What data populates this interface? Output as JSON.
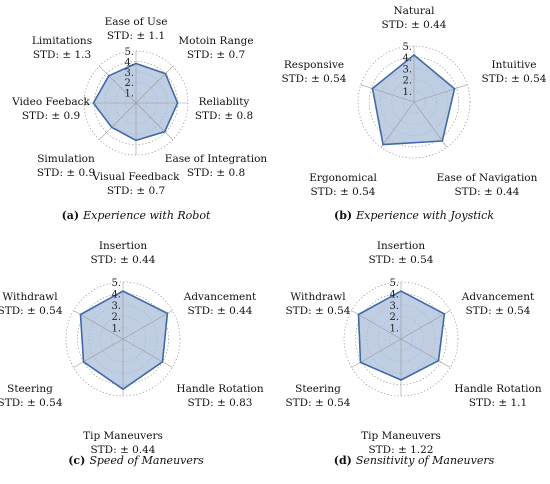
{
  "chart_data": [
    {
      "type": "radar",
      "panel": "a",
      "caption_letter": "(a)",
      "caption_title": "Experience with Robot",
      "rlim": [
        0,
        5
      ],
      "ticks": [
        "1.",
        "2.",
        "3.",
        "4.",
        "5."
      ],
      "grid": true,
      "categories": [
        "Ease of Use",
        "Motoin Range",
        "Reliablity",
        "Ease of Integration",
        "Visual Feedback",
        "Simulation",
        "Video Feeback",
        "Limitations"
      ],
      "std_labels": [
        "STD: ± 1.1",
        "STD: ± 0.7",
        "STD: ± 0.8",
        "STD: ± 0.8",
        "STD: ± 0.7",
        "STD: ± 0.9",
        "STD: ± 0.9",
        "STD: ± 1.3"
      ],
      "values": [
        3.8,
        4.0,
        4.0,
        3.9,
        3.6,
        3.3,
        4.1,
        3.7
      ]
    },
    {
      "type": "radar",
      "panel": "b",
      "caption_letter": "(b)",
      "caption_title": "Experience with Joystick",
      "rlim": [
        0,
        5
      ],
      "ticks": [
        "1.",
        "2.",
        "3.",
        "4.",
        "5."
      ],
      "grid": true,
      "categories": [
        "Natural",
        "Intuitive",
        "Ease of Navigation",
        "Ergonomical",
        "Responsive"
      ],
      "std_labels": [
        "STD: ± 0.44",
        "STD: ± 0.54",
        "STD: ± 0.44",
        "STD: ± 0.54",
        "STD: ± 0.54"
      ],
      "values": [
        4.2,
        3.8,
        4.3,
        4.7,
        3.9
      ]
    },
    {
      "type": "radar",
      "panel": "c",
      "caption_letter": "(c)",
      "caption_title": "Speed of Maneuvers",
      "rlim": [
        0,
        5
      ],
      "ticks": [
        "1.",
        "2.",
        "3.",
        "4.",
        "5."
      ],
      "grid": true,
      "categories": [
        "Insertion",
        "Advancement",
        "Handle Rotation",
        "Tip Maneuvers",
        "Steering",
        "Withdrawl"
      ],
      "std_labels": [
        "STD: ± 0.44",
        "STD: ± 0.44",
        "STD: ± 0.83",
        "STD: ± 0.44",
        "STD: ± 0.54",
        "STD: ± 0.54"
      ],
      "values": [
        4.2,
        4.5,
        4.0,
        4.4,
        4.0,
        4.3
      ]
    },
    {
      "type": "radar",
      "panel": "d",
      "caption_letter": "(d)",
      "caption_title": "Sensitivity of Maneuvers",
      "rlim": [
        0,
        5
      ],
      "ticks": [
        "1.",
        "2.",
        "3.",
        "4.",
        "5."
      ],
      "grid": true,
      "categories": [
        "Insertion",
        "Advancement",
        "Handle Rotation",
        "Tip Maneuvers",
        "Steering",
        "Withdrawl"
      ],
      "std_labels": [
        "STD: ± 0.54",
        "STD: ± 0.54",
        "STD: ± 1.1",
        "STD: ± 1.22",
        "STD: ± 0.54",
        "STD: ± 0.54"
      ],
      "values": [
        4.2,
        4.4,
        3.8,
        3.6,
        4.1,
        4.3
      ]
    }
  ],
  "style": {
    "fill_color": "#a9bed8",
    "line_color": "#4169a8",
    "grid_color": "#8a8a8a",
    "axis_color": "#9a9a9a"
  }
}
